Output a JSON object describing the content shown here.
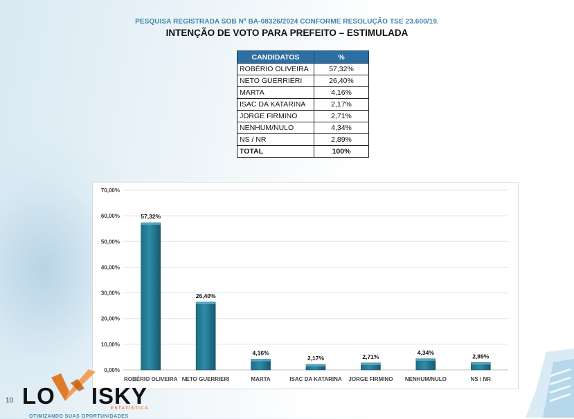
{
  "header": {
    "registration": "PESQUISA REGISTRADA SOB Nº BA-08326/2024 CONFORME RESOLUÇÃO TSE 23.600/19.",
    "title": "INTENÇÃO DE VOTO PARA PREFEITO – ESTIMULADA"
  },
  "table": {
    "headers": [
      "CANDIDATOS",
      "%"
    ],
    "rows": [
      {
        "name": "ROBÉRIO OLIVEIRA",
        "pct": "57,32%"
      },
      {
        "name": "NETO GUERRIERI",
        "pct": "26,40%"
      },
      {
        "name": "MARTA",
        "pct": "4,16%"
      },
      {
        "name": "ISAC DA KATARINA",
        "pct": "2,17%"
      },
      {
        "name": "JORGE FIRMINO",
        "pct": "2,71%"
      },
      {
        "name": "NENHUM/NULO",
        "pct": "4,34%"
      },
      {
        "name": "NS / NR",
        "pct": "2,89%"
      }
    ],
    "total": {
      "name": "TOTAL",
      "pct": "100%"
    }
  },
  "chart_data": {
    "type": "bar",
    "categories": [
      "ROBÉRIO OLIVEIRA",
      "NETO GUERRIERI",
      "MARTA",
      "ISAC DA KATARINA",
      "JORGE FIRMINO",
      "NENHUM/NULO",
      "NS / NR"
    ],
    "values": [
      57.32,
      26.4,
      4.16,
      2.17,
      2.71,
      4.34,
      2.89
    ],
    "data_labels": [
      "57,32%",
      "26,40%",
      "4,16%",
      "2,17%",
      "2,71%",
      "4,34%",
      "2,89%"
    ],
    "ylim": [
      0,
      70
    ],
    "yticks": [
      0,
      10,
      20,
      30,
      40,
      50,
      60,
      70
    ],
    "ytick_labels": [
      "0,00%",
      "10,00%",
      "20,00%",
      "30,00%",
      "40,00%",
      "50,00%",
      "60,00%",
      "70,00%"
    ],
    "grid": true,
    "bar_color": "#2e8ba6"
  },
  "footer": {
    "page_number": "10",
    "logo_left": "LO",
    "logo_right": "ISKY",
    "logo_sub": "ESTATÍSTICA",
    "tagline": "OTIMIZANDO SUAS OPORTUNIDADES"
  }
}
